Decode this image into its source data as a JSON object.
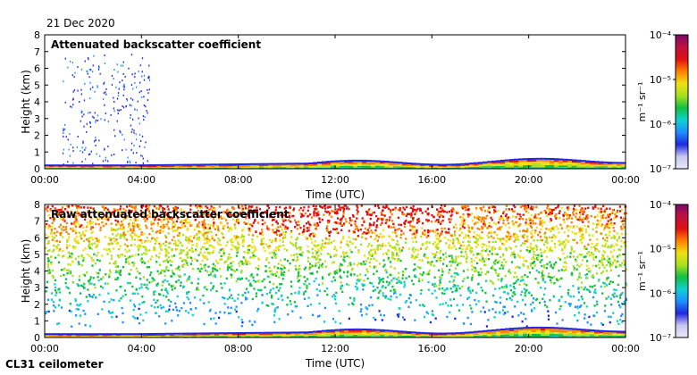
{
  "date_label": "21 Dec 2020",
  "instrument_label": "CL31 ceilometer",
  "colors": {
    "scale": [
      "#e8e8f8",
      "#c8c8f0",
      "#1e28e0",
      "#1e90ff",
      "#10d0d0",
      "#10c040",
      "#a8e020",
      "#f0e010",
      "#ff8000",
      "#e01010",
      "#c01040",
      "#7a0a6a"
    ],
    "frame": "#000000"
  },
  "chart_data": [
    {
      "type": "heatmap",
      "title": "Attenuated backscatter coefficient",
      "xlabel": "Time (UTC)",
      "ylabel": "Height (km)",
      "x_ticks": [
        "00:00",
        "04:00",
        "08:00",
        "12:00",
        "16:00",
        "20:00",
        "00:00"
      ],
      "y_ticks": [
        "0",
        "1",
        "2",
        "3",
        "4",
        "5",
        "6",
        "7",
        "8"
      ],
      "ylim": [
        0,
        8
      ],
      "colorbar": {
        "label": "m⁻¹ sr⁻¹",
        "ticks": [
          "10⁻⁷",
          "10⁻⁶",
          "10⁻⁵",
          "10⁻⁴"
        ],
        "scale": "log",
        "range": [
          1e-07,
          0.0001
        ]
      }
    },
    {
      "type": "heatmap",
      "title": "Raw attenuated backscatter coefficient",
      "xlabel": "Time (UTC)",
      "ylabel": "Height (km)",
      "x_ticks": [
        "00:00",
        "04:00",
        "08:00",
        "12:00",
        "16:00",
        "20:00",
        "00:00"
      ],
      "y_ticks": [
        "0",
        "1",
        "2",
        "3",
        "4",
        "5",
        "6",
        "7",
        "8"
      ],
      "ylim": [
        0,
        8
      ],
      "colorbar": {
        "label": "m⁻¹ sr⁻¹",
        "ticks": [
          "10⁻⁷",
          "10⁻⁶",
          "10⁻⁵",
          "10⁻⁴"
        ],
        "scale": "log",
        "range": [
          1e-07,
          0.0001
        ]
      }
    }
  ]
}
